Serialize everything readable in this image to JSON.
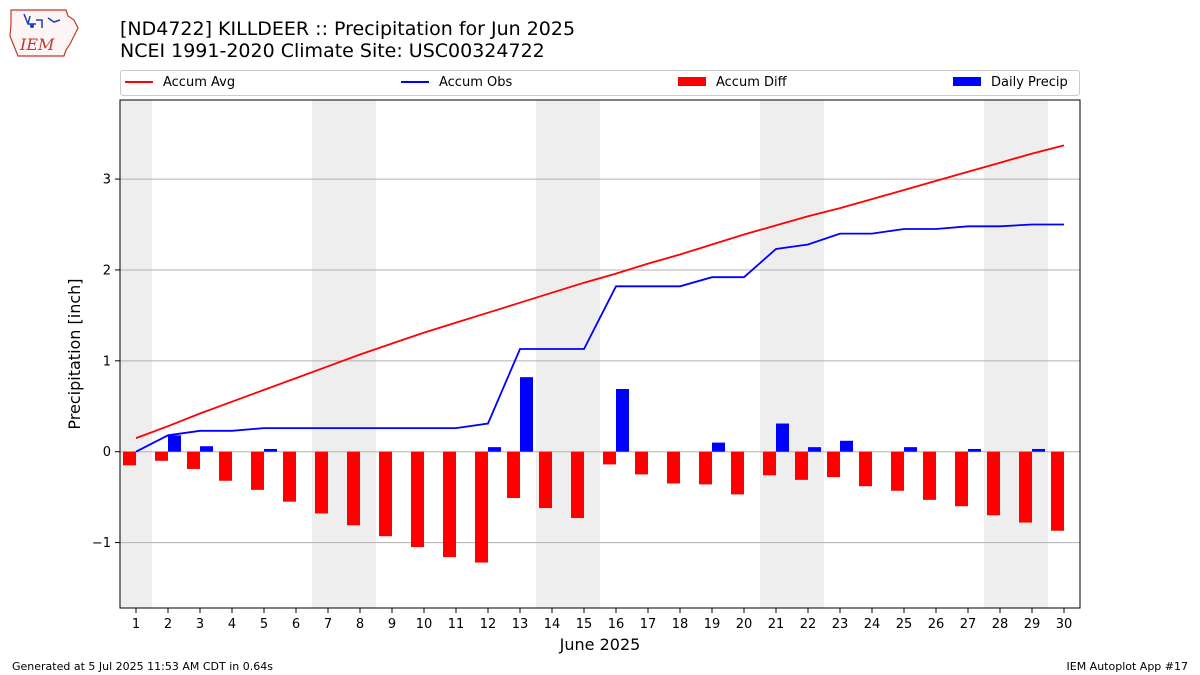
{
  "header": {
    "title_line1": "[ND4722] KILLDEER :: Precipitation for Jun 2025",
    "title_line2": "NCEI 1991-2020 Climate Site: USC00324722",
    "logo_text": "IEM"
  },
  "footer": {
    "left": "Generated at 5 Jul 2025 11:53 AM CDT in 0.64s",
    "right": "IEM Autoplot App #17"
  },
  "legend": [
    {
      "label": "Accum Avg",
      "kind": "line",
      "color": "#ff0000"
    },
    {
      "label": "Accum Obs",
      "kind": "line",
      "color": "#0000ff"
    },
    {
      "label": "Accum Diff",
      "kind": "box",
      "color": "#ff0000"
    },
    {
      "label": "Daily Precip",
      "kind": "box",
      "color": "#0000ff"
    }
  ],
  "chart_data": {
    "type": "bar",
    "xlabel": "June 2025",
    "ylabel": "Precipitation [inch]",
    "ylim": [
      -1.72,
      3.87
    ],
    "yticks": [
      -1,
      0,
      1,
      2,
      3
    ],
    "ytick_labels": [
      "−1",
      "0",
      "1",
      "2",
      "3"
    ],
    "grid": "horizontal",
    "legend_position": "top",
    "weekend_shading_days": [
      1,
      7,
      8,
      14,
      15,
      21,
      22,
      28,
      29
    ],
    "days": [
      1,
      2,
      3,
      4,
      5,
      6,
      7,
      8,
      9,
      10,
      11,
      12,
      13,
      14,
      15,
      16,
      17,
      18,
      19,
      20,
      21,
      22,
      23,
      24,
      25,
      26,
      27,
      28,
      29,
      30
    ],
    "series": [
      {
        "name": "Accum Avg",
        "kind": "line",
        "color": "#ff0000",
        "values": [
          0.15,
          0.28,
          0.42,
          0.55,
          0.68,
          0.81,
          0.94,
          1.07,
          1.19,
          1.31,
          1.42,
          1.53,
          1.64,
          1.75,
          1.86,
          1.96,
          2.07,
          2.17,
          2.28,
          2.39,
          2.49,
          2.59,
          2.68,
          2.78,
          2.88,
          2.98,
          3.08,
          3.18,
          3.28,
          3.37
        ]
      },
      {
        "name": "Accum Obs",
        "kind": "line",
        "color": "#0000ff",
        "values": [
          0.0,
          0.18,
          0.23,
          0.23,
          0.26,
          0.26,
          0.26,
          0.26,
          0.26,
          0.26,
          0.26,
          0.31,
          1.13,
          1.13,
          1.13,
          1.82,
          1.82,
          1.82,
          1.92,
          1.92,
          2.23,
          2.28,
          2.4,
          2.4,
          2.45,
          2.45,
          2.48,
          2.48,
          2.5,
          2.5
        ]
      },
      {
        "name": "Accum Diff",
        "kind": "bar",
        "color": "#ff0000",
        "values": [
          -0.15,
          -0.1,
          -0.19,
          -0.32,
          -0.42,
          -0.55,
          -0.68,
          -0.81,
          -0.93,
          -1.05,
          -1.16,
          -1.22,
          -0.51,
          -0.62,
          -0.73,
          -0.14,
          -0.25,
          -0.35,
          -0.36,
          -0.47,
          -0.26,
          -0.31,
          -0.28,
          -0.38,
          -0.43,
          -0.53,
          -0.6,
          -0.7,
          -0.78,
          -0.87
        ]
      },
      {
        "name": "Daily Precip",
        "kind": "bar",
        "color": "#0000ff",
        "values": [
          0.0,
          0.18,
          0.06,
          0.0,
          0.03,
          0.0,
          0.0,
          0.0,
          0.0,
          0.0,
          0.0,
          0.05,
          0.82,
          0.0,
          0.0,
          0.69,
          0.0,
          0.0,
          0.1,
          0.0,
          0.31,
          0.05,
          0.12,
          0.0,
          0.05,
          0.0,
          0.03,
          0.0,
          0.03,
          0.0
        ]
      }
    ]
  }
}
